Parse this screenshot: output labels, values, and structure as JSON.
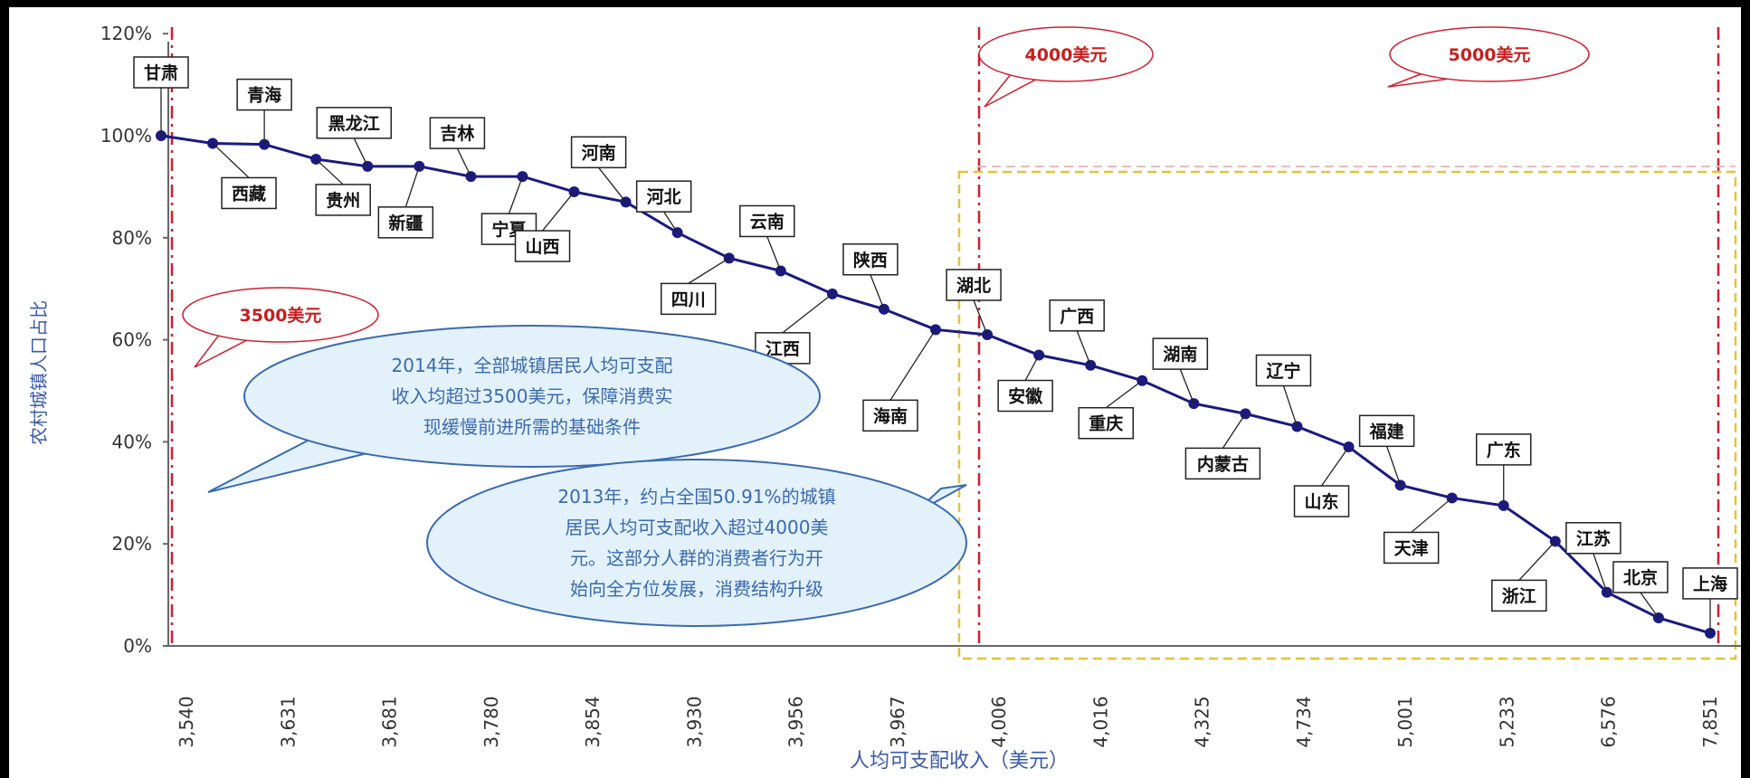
{
  "chart_data": {
    "type": "line",
    "ylabel": "农村城镇人口占比",
    "xlabel": "人均可支配收入（美元）",
    "yticks": [
      "0%",
      "20%",
      "40%",
      "60%",
      "80%",
      "100%",
      "120%"
    ],
    "ylim": [
      0,
      120
    ],
    "xticks": [
      "3,540",
      "3,631",
      "3,681",
      "3,780",
      "3,854",
      "3,930",
      "3,956",
      "3,967",
      "4,006",
      "4,016",
      "4,325",
      "4,734",
      "5,001",
      "5,233",
      "6,576",
      "7,851"
    ],
    "points": [
      {
        "label": "甘肃",
        "y": 100
      },
      {
        "label": "西藏",
        "y": 98.5
      },
      {
        "label": "青海",
        "y": 98.3
      },
      {
        "label": "贵州",
        "y": 95.4
      },
      {
        "label": "黑龙江",
        "y": 94
      },
      {
        "label": "新疆",
        "y": 94
      },
      {
        "label": "吉林",
        "y": 92
      },
      {
        "label": "宁夏",
        "y": 92
      },
      {
        "label": "山西",
        "y": 89
      },
      {
        "label": "河南",
        "y": 87
      },
      {
        "label": "河北",
        "y": 81
      },
      {
        "label": "四川",
        "y": 76
      },
      {
        "label": "云南",
        "y": 73.5
      },
      {
        "label": "江西",
        "y": 69
      },
      {
        "label": "陕西",
        "y": 66
      },
      {
        "label": "海南",
        "y": 62
      },
      {
        "label": "湖北",
        "y": 61
      },
      {
        "label": "安徽",
        "y": 57
      },
      {
        "label": "广西",
        "y": 55
      },
      {
        "label": "重庆",
        "y": 52
      },
      {
        "label": "湖南",
        "y": 47.5
      },
      {
        "label": "内蒙古",
        "y": 45.5
      },
      {
        "label": "辽宁",
        "y": 43
      },
      {
        "label": "山东",
        "y": 39
      },
      {
        "label": "福建",
        "y": 31.5
      },
      {
        "label": "天津",
        "y": 29
      },
      {
        "label": "广东",
        "y": 27.5
      },
      {
        "label": "浙江",
        "y": 20.5
      },
      {
        "label": "江苏",
        "y": 10.5
      },
      {
        "label": "北京",
        "y": 5.5
      },
      {
        "label": "上海",
        "y": 2.5
      }
    ],
    "grid": false,
    "series_color": "#1a1a80"
  },
  "annotations": {
    "ref_lines": [
      "3500美元",
      "4000美元",
      "5000美元"
    ],
    "note1": [
      "2014年，全部城镇居民人均可支配",
      "收入均超过3500美元，保障消费实",
      "现缓慢前进所需的基础条件"
    ],
    "note2": [
      "2013年，约占全国50.91%的城镇",
      "居民人均可支配收入超过4000美",
      "元。这部分人群的消费者行为开",
      "始向全方位发展，消费结构升级"
    ]
  }
}
